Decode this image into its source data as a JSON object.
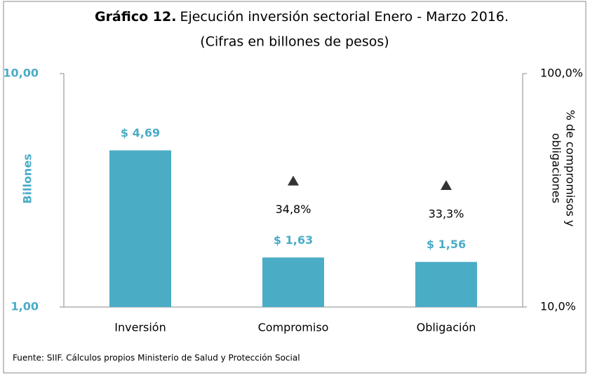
{
  "chart_data": {
    "type": "bar",
    "log_scale": true,
    "title_label": "Gráfico 12.",
    "title": "Ejecución inversión sectorial  Enero - Marzo 2016.",
    "subtitle": "(Cifras en billones de pesos)",
    "categories": [
      "Inversión",
      "Compromiso",
      "Obligación"
    ],
    "series": [
      {
        "name": "Billones",
        "color": "#4bacc6",
        "values": [
          4.69,
          1.63,
          1.56
        ],
        "value_labels": [
          "$ 4,69",
          "$ 1,63",
          "$ 1,56"
        ]
      },
      {
        "name": "% de compromisos y obligaciones",
        "type": "scatter",
        "axis": "y2",
        "color": "#333333",
        "values": [
          null,
          34.8,
          33.3
        ],
        "value_labels": [
          null,
          "34,8%",
          "33,3%"
        ]
      }
    ],
    "ylabel": "Billones",
    "y2label": [
      "% de compromisos y",
      "obligaciones"
    ],
    "ylim": [
      1,
      10
    ],
    "yticks": [
      {
        "value": 1,
        "label": "1,00"
      },
      {
        "value": 10,
        "label": "10,00"
      }
    ],
    "y2lim": [
      10,
      100
    ],
    "y2ticks": [
      {
        "value": 10,
        "label": "10,0%"
      },
      {
        "value": 100,
        "label": "100,0%"
      }
    ],
    "source": "Fuente: SIIF. Cálculos propios Ministerio de Salud y Protección Social"
  }
}
